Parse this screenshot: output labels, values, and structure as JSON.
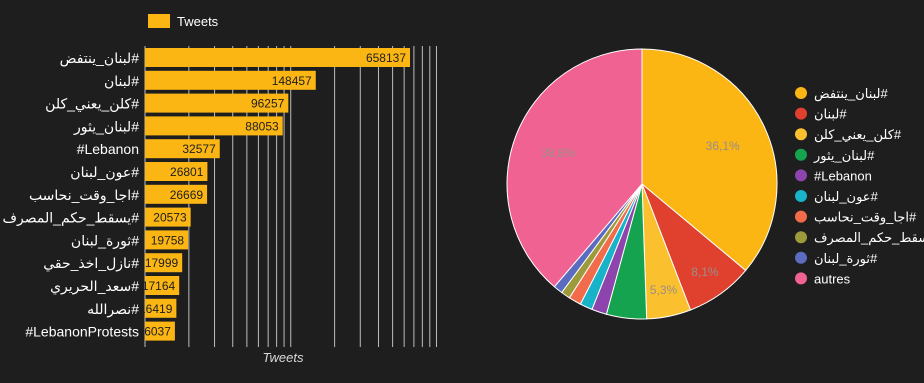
{
  "colors": {
    "background": "#1e1e1e",
    "bar": "#fbb614",
    "grid": "#bdbdbd",
    "pct_text": "#9c8d89"
  },
  "chart_data": [
    {
      "type": "bar",
      "orientation": "horizontal",
      "legend": "Tweets",
      "legend_position": "top-left",
      "xlabel": "Tweets",
      "series": [
        {
          "name": "Tweets",
          "values": [
            658137,
            148457,
            96257,
            88053,
            32577,
            26801,
            26669,
            20573,
            19758,
            17999,
            17164,
            16419,
            16037
          ]
        }
      ],
      "categories": [
        "لبنان_ينتفض#",
        "لبنان#",
        "كلن_يعني_كلن#",
        "لبنان_يثور#",
        "#Lebanon",
        "عون_لبنان#",
        "اجا_وقت_نحاسب#",
        "يسقط_حكم_المصرف#",
        "ثورة_لبنان#",
        "نازل_اخذ_حقي#",
        "سعد_الحريري#",
        "نصرالله#",
        "#LebanonProtests"
      ],
      "values": [
        658137,
        148457,
        96257,
        88053,
        32577,
        26801,
        26669,
        20573,
        19758,
        17999,
        17164,
        16419,
        16037
      ],
      "scale": "log",
      "grid": true
    },
    {
      "type": "pie",
      "legend_position": "right",
      "labels": [
        "لبنان_ينتفض#",
        "لبنان#",
        "كلن_يعني_كلن#",
        "لبنان_يثور#",
        "#Lebanon",
        "عون_لبنان#",
        "اجا_وقت_نحاسب#",
        "يسقط_حكم_المصرف#",
        "ثورة_لبنان#",
        "autres"
      ],
      "colors": [
        "#fbb614",
        "#e0412f",
        "#fbc02d",
        "#16a34f",
        "#8e44ad",
        "#18b3c8",
        "#f26b4b",
        "#9c9a3a",
        "#5b6bbf",
        "#f06292"
      ],
      "values": [
        36.1,
        8.1,
        5.3,
        4.8,
        1.8,
        1.5,
        1.5,
        1.1,
        1.1,
        38.8
      ],
      "value_labels": [
        "36,1%",
        "8,1%",
        "5,3%",
        "",
        "",
        "",
        "",
        "",
        "",
        "38,8%"
      ]
    }
  ]
}
